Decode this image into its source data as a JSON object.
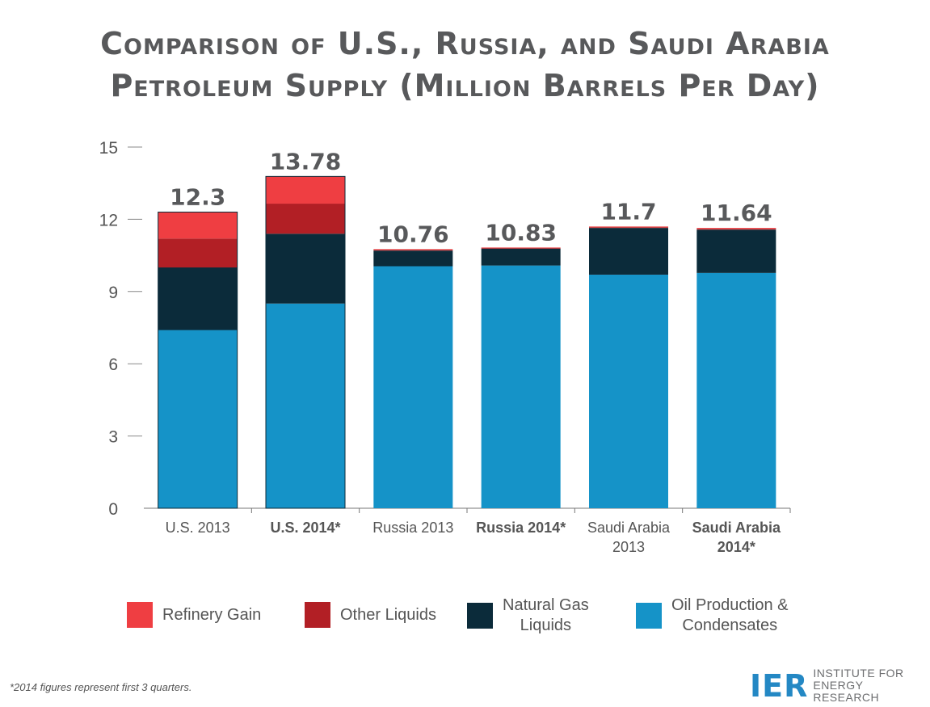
{
  "title": {
    "line1": "Comparison of U.S., Russia, and Saudi Arabia",
    "line2": "Petroleum Supply (Million Barrels Per Day)"
  },
  "chart_data": {
    "type": "bar",
    "stacked": true,
    "categories": [
      "U.S. 2013",
      "U.S. 2014*",
      "Russia 2013",
      "Russia 2014*",
      "Saudi Arabia 2013",
      "Saudi Arabia 2014*"
    ],
    "category_bold": [
      false,
      true,
      false,
      true,
      false,
      true
    ],
    "totals_labels": [
      "12.3",
      "13.78",
      "10.76",
      "10.83",
      "11.7",
      "11.64"
    ],
    "series": [
      {
        "name": "Oil Production & Condensates",
        "color": "#1593c8",
        "values": [
          7.4,
          8.5,
          10.05,
          10.08,
          9.7,
          9.77
        ]
      },
      {
        "name": "Natural Gas Liquids",
        "color": "#0b2b3a",
        "values": [
          2.6,
          2.9,
          0.65,
          0.7,
          1.94,
          1.8
        ]
      },
      {
        "name": "Other Liquids",
        "color": "#b21f25",
        "values": [
          1.2,
          1.25,
          0.03,
          0.03,
          0.03,
          0.03
        ]
      },
      {
        "name": "Refinery Gain",
        "color": "#ef3e42",
        "values": [
          1.1,
          1.13,
          0.03,
          0.02,
          0.03,
          0.04
        ]
      }
    ],
    "y_ticks": [
      0,
      3,
      6,
      9,
      12,
      15
    ],
    "ylim": [
      0,
      15
    ],
    "grid": false
  },
  "legend": [
    {
      "label": "Refinery Gain",
      "color": "#ef3e42"
    },
    {
      "label": "Other Liquids",
      "color": "#b21f25"
    },
    {
      "label": "Natural Gas\nLiquids",
      "color": "#0b2b3a"
    },
    {
      "label": "Oil Production &\nCondensates",
      "color": "#1593c8"
    }
  ],
  "footnote": "*2014 figures represent first 3 quarters.",
  "logo": {
    "mark": "IER",
    "line1": "INSTITUTE FOR",
    "line2": "ENERGY RESEARCH"
  }
}
